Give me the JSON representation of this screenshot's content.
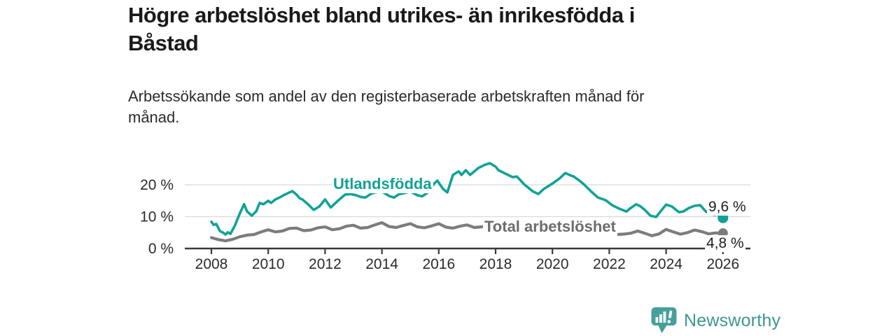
{
  "header": {
    "title_line1": "Högre arbetslöshet bland utrikes- än inrikesfödda i",
    "title_line2": "Båstad",
    "subtitle_line1": "Arbetssökande som andel av den registerbaserade arbetskraften månad för",
    "subtitle_line2": "månad."
  },
  "chart_data": {
    "type": "line",
    "title": "Högre arbetslöshet bland utrikes- än inrikesfödda i Båstad",
    "subtitle": "Arbetssökande som andel av den registerbaserade arbetskraften månad för månad.",
    "xlabel": "",
    "ylabel": "",
    "x_axis": {
      "ticks": [
        2008,
        2010,
        2012,
        2014,
        2016,
        2018,
        2020,
        2022,
        2024,
        2026
      ],
      "range": [
        2007.9,
        2027.0
      ]
    },
    "y_axis": {
      "ticks": [
        0,
        10,
        20
      ],
      "tick_labels": [
        "0 %",
        "10 %",
        "20 %"
      ],
      "range": [
        0,
        28
      ]
    },
    "grid": "horizontal-at-10-and-20",
    "legend_position": "inline-labels-on-lines",
    "colors": {
      "axis": "#3a3a3a",
      "grid": "#d9d9d9",
      "tick_text": "#2b2b2b"
    },
    "series": [
      {
        "id": "utlandsfodda",
        "name": "Utlandsfödda",
        "color": "#11a297",
        "end_label": "9,6 %",
        "end_value": 9.6,
        "points": [
          [
            2008.0,
            8.4
          ],
          [
            2008.08,
            7.4
          ],
          [
            2008.17,
            7.7
          ],
          [
            2008.3,
            5.5
          ],
          [
            2008.42,
            4.9
          ],
          [
            2008.5,
            4.4
          ],
          [
            2008.58,
            5.1
          ],
          [
            2008.67,
            4.6
          ],
          [
            2008.83,
            7.3
          ],
          [
            2009.0,
            11.0
          ],
          [
            2009.15,
            13.9
          ],
          [
            2009.25,
            11.7
          ],
          [
            2009.42,
            10.3
          ],
          [
            2009.58,
            11.7
          ],
          [
            2009.7,
            14.3
          ],
          [
            2009.83,
            13.9
          ],
          [
            2010.0,
            15.0
          ],
          [
            2010.1,
            14.3
          ],
          [
            2010.25,
            15.4
          ],
          [
            2010.42,
            16.1
          ],
          [
            2010.58,
            16.9
          ],
          [
            2010.75,
            17.6
          ],
          [
            2010.85,
            18.0
          ],
          [
            2011.0,
            16.9
          ],
          [
            2011.1,
            15.8
          ],
          [
            2011.2,
            15.4
          ],
          [
            2011.4,
            13.9
          ],
          [
            2011.6,
            12.1
          ],
          [
            2011.8,
            13.2
          ],
          [
            2012.0,
            15.4
          ],
          [
            2012.2,
            12.9
          ],
          [
            2012.45,
            15.0
          ],
          [
            2012.7,
            16.9
          ],
          [
            2012.9,
            17.1
          ],
          [
            2013.1,
            16.7
          ],
          [
            2013.25,
            16.2
          ],
          [
            2013.42,
            16.0
          ],
          [
            2013.6,
            17.1
          ],
          [
            2013.75,
            17.6
          ],
          [
            2014.0,
            17.9
          ],
          [
            2014.25,
            16.5
          ],
          [
            2014.42,
            16.0
          ],
          [
            2014.6,
            17.0
          ],
          [
            2014.83,
            17.5
          ],
          [
            2015.0,
            17.9
          ],
          [
            2015.25,
            16.7
          ],
          [
            2015.42,
            16.4
          ],
          [
            2015.6,
            17.5
          ],
          [
            2015.85,
            20.5
          ],
          [
            2015.95,
            21.3
          ],
          [
            2016.15,
            18.7
          ],
          [
            2016.3,
            17.6
          ],
          [
            2016.5,
            23.1
          ],
          [
            2016.7,
            24.2
          ],
          [
            2016.8,
            23.1
          ],
          [
            2016.95,
            24.6
          ],
          [
            2017.1,
            23.1
          ],
          [
            2017.4,
            25.3
          ],
          [
            2017.6,
            26.2
          ],
          [
            2017.8,
            26.8
          ],
          [
            2018.0,
            25.7
          ],
          [
            2018.1,
            24.6
          ],
          [
            2018.35,
            23.5
          ],
          [
            2018.6,
            22.4
          ],
          [
            2018.75,
            22.6
          ],
          [
            2019.0,
            20.2
          ],
          [
            2019.3,
            18.0
          ],
          [
            2019.5,
            17.1
          ],
          [
            2019.7,
            18.7
          ],
          [
            2020.0,
            20.4
          ],
          [
            2020.25,
            22.0
          ],
          [
            2020.45,
            23.7
          ],
          [
            2020.6,
            23.1
          ],
          [
            2020.75,
            22.6
          ],
          [
            2020.95,
            21.3
          ],
          [
            2021.1,
            20.2
          ],
          [
            2021.35,
            18.0
          ],
          [
            2021.6,
            16.0
          ],
          [
            2021.8,
            15.4
          ],
          [
            2021.9,
            15.0
          ],
          [
            2022.1,
            13.6
          ],
          [
            2022.35,
            12.5
          ],
          [
            2022.6,
            11.6
          ],
          [
            2022.75,
            12.7
          ],
          [
            2022.95,
            13.9
          ],
          [
            2023.1,
            13.2
          ],
          [
            2023.25,
            12.1
          ],
          [
            2023.45,
            10.3
          ],
          [
            2023.65,
            9.9
          ],
          [
            2023.8,
            11.6
          ],
          [
            2024.0,
            13.8
          ],
          [
            2024.2,
            13.2
          ],
          [
            2024.45,
            11.4
          ],
          [
            2024.6,
            11.6
          ],
          [
            2024.8,
            12.7
          ],
          [
            2025.0,
            13.4
          ],
          [
            2025.2,
            13.6
          ],
          [
            2025.4,
            11.6
          ],
          [
            2025.55,
            11.0
          ],
          [
            2025.7,
            10.5
          ],
          [
            2025.8,
            10.8
          ],
          [
            2025.9,
            10.1
          ],
          [
            2026.0,
            9.6
          ]
        ]
      },
      {
        "id": "total",
        "name": "Total arbetslöshet",
        "color": "#7c7c7c",
        "label_color": "#6d6d6d",
        "end_label": "4,8 %",
        "end_value": 4.8,
        "points": [
          [
            2008.0,
            3.4
          ],
          [
            2008.25,
            2.8
          ],
          [
            2008.5,
            2.4
          ],
          [
            2008.75,
            2.9
          ],
          [
            2009.0,
            3.7
          ],
          [
            2009.25,
            4.2
          ],
          [
            2009.5,
            4.4
          ],
          [
            2009.75,
            5.2
          ],
          [
            2010.0,
            5.9
          ],
          [
            2010.25,
            5.2
          ],
          [
            2010.5,
            5.5
          ],
          [
            2010.75,
            6.3
          ],
          [
            2011.0,
            6.4
          ],
          [
            2011.25,
            5.6
          ],
          [
            2011.5,
            5.8
          ],
          [
            2011.75,
            6.5
          ],
          [
            2012.0,
            6.8
          ],
          [
            2012.25,
            5.9
          ],
          [
            2012.5,
            6.2
          ],
          [
            2012.75,
            7.0
          ],
          [
            2013.0,
            7.3
          ],
          [
            2013.25,
            6.4
          ],
          [
            2013.5,
            6.6
          ],
          [
            2013.75,
            7.4
          ],
          [
            2014.0,
            8.1
          ],
          [
            2014.25,
            6.9
          ],
          [
            2014.5,
            6.6
          ],
          [
            2014.75,
            7.2
          ],
          [
            2015.0,
            7.8
          ],
          [
            2015.25,
            6.8
          ],
          [
            2015.5,
            6.5
          ],
          [
            2015.75,
            7.1
          ],
          [
            2016.0,
            7.8
          ],
          [
            2016.25,
            6.7
          ],
          [
            2016.5,
            6.4
          ],
          [
            2016.75,
            7.0
          ],
          [
            2017.0,
            7.4
          ],
          [
            2017.25,
            6.6
          ],
          [
            2017.5,
            6.8
          ],
          [
            2017.75,
            7.2
          ],
          [
            2018.0,
            7.0
          ],
          [
            2018.25,
            6.5
          ],
          [
            2018.5,
            6.3
          ],
          [
            2018.75,
            6.4
          ],
          [
            2019.0,
            6.2
          ],
          [
            2019.25,
            6.0
          ],
          [
            2019.5,
            5.8
          ],
          [
            2019.75,
            5.9
          ],
          [
            2020.0,
            6.0
          ],
          [
            2020.25,
            6.3
          ],
          [
            2020.5,
            6.5
          ],
          [
            2020.75,
            6.4
          ],
          [
            2021.0,
            6.2
          ],
          [
            2021.25,
            5.9
          ],
          [
            2021.5,
            5.5
          ],
          [
            2021.75,
            5.2
          ],
          [
            2022.0,
            4.9
          ],
          [
            2022.25,
            4.4
          ],
          [
            2022.5,
            4.5
          ],
          [
            2022.75,
            4.8
          ],
          [
            2023.0,
            5.5
          ],
          [
            2023.25,
            4.8
          ],
          [
            2023.5,
            4.0
          ],
          [
            2023.75,
            4.6
          ],
          [
            2024.0,
            6.0
          ],
          [
            2024.25,
            5.2
          ],
          [
            2024.5,
            4.5
          ],
          [
            2024.75,
            5.0
          ],
          [
            2025.0,
            5.8
          ],
          [
            2025.25,
            5.3
          ],
          [
            2025.5,
            4.6
          ],
          [
            2025.75,
            4.9
          ],
          [
            2026.0,
            4.8
          ]
        ]
      }
    ]
  },
  "branding": {
    "name": "Newsworthy",
    "icon": "bar-chart-speech-bubble-icon",
    "icon_color": "#46a099",
    "text_color": "#3e968e"
  }
}
